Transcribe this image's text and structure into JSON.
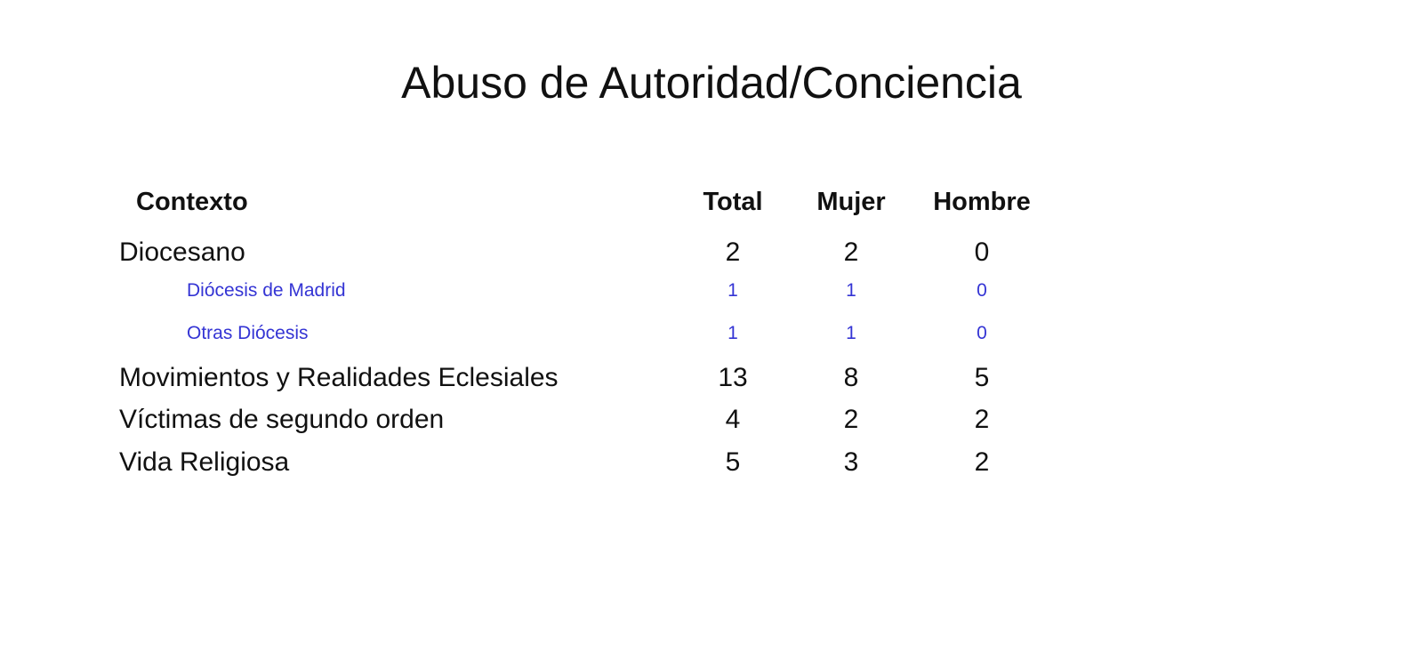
{
  "title": "Abuso de Autoridad/Conciencia",
  "headers": [
    "Contexto",
    "Total",
    "Mujer",
    "Hombre"
  ],
  "rows": [
    {
      "label": "Diocesano",
      "total": "2",
      "mujer": "2",
      "hombre": "0"
    },
    {
      "label": "Diócesis de Madrid",
      "total": "1",
      "mujer": "1",
      "hombre": "0"
    },
    {
      "label": "Otras Diócesis",
      "total": "1",
      "mujer": "1",
      "hombre": "0"
    },
    {
      "label": "Movimientos y Realidades Eclesiales",
      "total": "13",
      "mujer": "8",
      "hombre": "5"
    },
    {
      "label": "Víctimas de segundo orden",
      "total": "4",
      "mujer": "2",
      "hombre": "2"
    },
    {
      "label": "Vida Religiosa",
      "total": "5",
      "mujer": "3",
      "hombre": "2"
    }
  ],
  "colors": {
    "subrow": "#3434d4",
    "text": "#111111"
  }
}
